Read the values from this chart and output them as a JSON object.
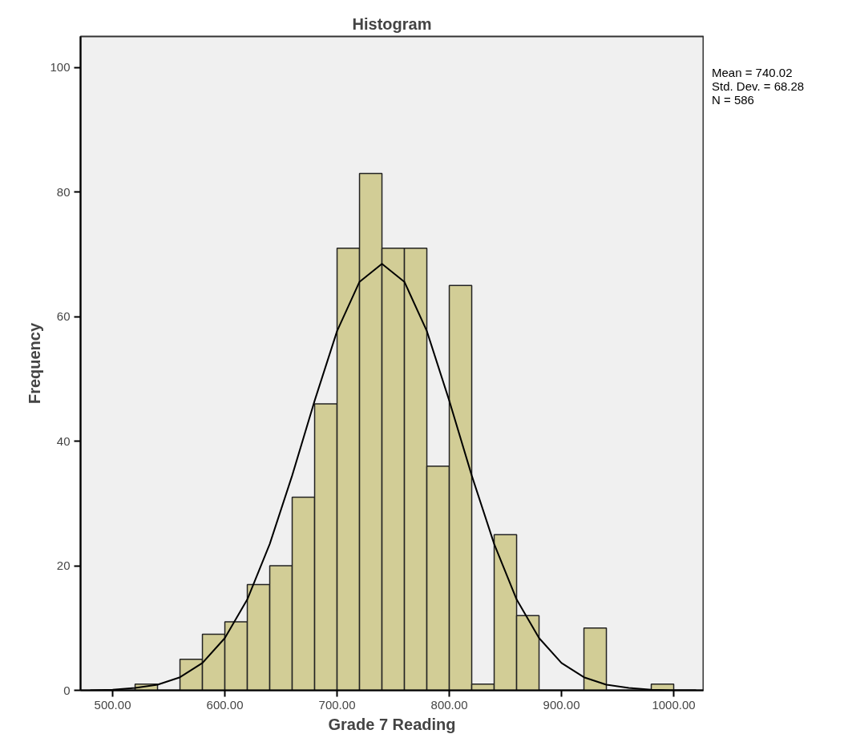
{
  "chart_data": {
    "type": "histogram",
    "title": "Histogram",
    "xlabel": "Grade 7 Reading",
    "ylabel": "Frequency",
    "bins": [
      520,
      540,
      560,
      580,
      600,
      620,
      640,
      660,
      680,
      700,
      720,
      740,
      760,
      780,
      800,
      820,
      840,
      860,
      880,
      900,
      920,
      940,
      960,
      980,
      1000
    ],
    "values": [
      1,
      0,
      5,
      9,
      11,
      17,
      20,
      31,
      46,
      71,
      83,
      71,
      71,
      36,
      65,
      1,
      25,
      12,
      0,
      0,
      10,
      0,
      0,
      1
    ],
    "color": "#d2cd96",
    "series": [
      {
        "type": "line",
        "color": "#000000",
        "x": [
          480,
          500,
          520,
          540,
          560,
          580,
          600,
          620,
          640,
          660,
          680,
          700,
          720,
          740,
          760,
          780,
          800,
          820,
          840,
          860,
          880,
          900,
          920,
          940,
          960,
          980,
          1000,
          1020
        ],
        "values": [
          0,
          0.1,
          0.4,
          0.9,
          2.1,
          4.4,
          8.4,
          14.6,
          23.5,
          34.5,
          46.5,
          57.7,
          65.6,
          68.5,
          65.6,
          57.7,
          46.5,
          34.5,
          23.5,
          14.6,
          8.4,
          4.4,
          2.1,
          0.9,
          0.4,
          0.1,
          0,
          0
        ]
      }
    ],
    "annotations": [
      "Mean = 740.02",
      "Std. Dev. = 68.28",
      "N = 586"
    ],
    "xlim": [
      471.4,
      1026.4
    ],
    "ylim": [
      0,
      105
    ],
    "xticks": [
      {
        "value": 500,
        "label": "500.00"
      },
      {
        "value": 600,
        "label": "600.00"
      },
      {
        "value": 700,
        "label": "700.00"
      },
      {
        "value": 800,
        "label": "800.00"
      },
      {
        "value": 900,
        "label": "900.00"
      },
      {
        "value": 1000,
        "label": "1000.00"
      }
    ],
    "yticks": [
      0,
      20,
      40,
      60,
      80,
      100
    ],
    "grid": false
  }
}
